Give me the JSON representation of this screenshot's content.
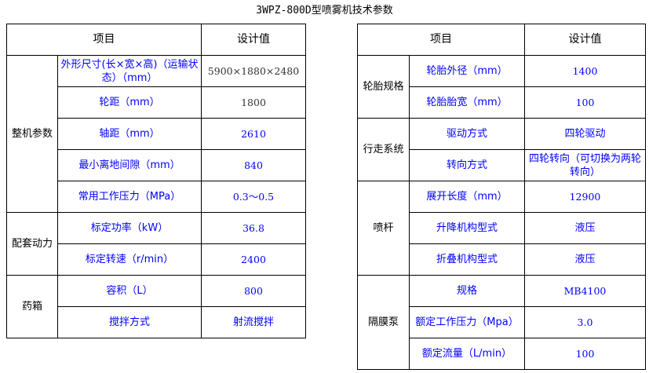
{
  "title": "3WPZ-800D型喷雾机技术参数",
  "header": {
    "item": "项目",
    "value": "设计值"
  },
  "left_groups": [
    {
      "group": "整机参数",
      "rows": [
        {
          "label": "外形尺寸(长×宽×高)（运输状态）（mm）",
          "value": "5900×1880×2480"
        },
        {
          "label": "轮距（mm）",
          "value": "1800"
        },
        {
          "label": "轴距（mm）",
          "value": "2610"
        },
        {
          "label": "最小离地间隙（mm）",
          "value": "840"
        },
        {
          "label": "常用工作压力（MPa）",
          "value": "0.3～0.5"
        }
      ]
    },
    {
      "group": "配套动力",
      "rows": [
        {
          "label": "标定功率（kW）",
          "value": "36.8"
        },
        {
          "label": "标定转速（r/min）",
          "value": "2400"
        }
      ]
    },
    {
      "group": "药箱",
      "rows": [
        {
          "label": "容积（L）",
          "value": "800"
        },
        {
          "label": "搅拌方式",
          "value": "射流搅拌"
        }
      ]
    }
  ],
  "right_groups": [
    {
      "group": "轮胎规格",
      "rows": [
        {
          "label": "轮胎外径（mm）",
          "value": "1400"
        },
        {
          "label": "轮胎胎宽（mm）",
          "value": "100"
        }
      ]
    },
    {
      "group": "行走系统",
      "rows": [
        {
          "label": "驱动方式",
          "value": "四轮驱动"
        },
        {
          "label": "转向方式",
          "value": "四轮转向（可切换为两轮转向）"
        }
      ]
    },
    {
      "group": "喷杆",
      "rows": [
        {
          "label": "展开长度（mm）",
          "value": "12900"
        },
        {
          "label": "升降机构型式",
          "value": "液压"
        },
        {
          "label": "折叠机构型式",
          "value": "液压"
        }
      ]
    },
    {
      "group": "隔膜泵",
      "rows": [
        {
          "label": "规格",
          "value": "MB4100"
        },
        {
          "label": "额定工作压力（Mpa）",
          "value": "3.0"
        },
        {
          "label": "额定流量（L/min）",
          "value": "100"
        }
      ]
    }
  ]
}
